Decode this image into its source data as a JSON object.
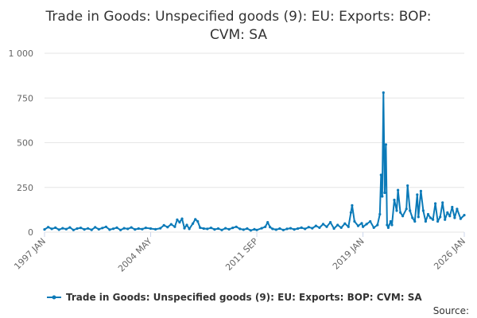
{
  "chart_data": {
    "type": "line",
    "title_line1": "Trade in Goods: Unspecified goods (9): EU: Exports: BOP:",
    "title_line2": "CVM: SA",
    "ylim": [
      0,
      1000
    ],
    "y_ticks": [
      {
        "value": 0,
        "label": "0"
      },
      {
        "value": 250,
        "label": "250"
      },
      {
        "value": 500,
        "label": "500"
      },
      {
        "value": 750,
        "label": "750"
      },
      {
        "value": 1000,
        "label": "1 000"
      }
    ],
    "x_range": [
      "1997-01",
      "2026-01"
    ],
    "x_ticks": [
      {
        "date": "1997-01",
        "label": "1997 JAN"
      },
      {
        "date": "2004-05",
        "label": "2004 MAY"
      },
      {
        "date": "2011-09",
        "label": "2011 SEP"
      },
      {
        "date": "2019-01",
        "label": "2019 JAN"
      },
      {
        "date": "2026-01",
        "label": "2026 JAN"
      }
    ],
    "series": [
      {
        "name": "Trade in Goods: Unspecified goods (9): EU: Exports: BOP: CVM: SA",
        "color": "#0b7ab8",
        "points": [
          [
            "1997-01",
            15
          ],
          [
            "1997-04",
            28
          ],
          [
            "1997-07",
            18
          ],
          [
            "1997-10",
            25
          ],
          [
            "1998-01",
            14
          ],
          [
            "1998-04",
            22
          ],
          [
            "1998-07",
            17
          ],
          [
            "1998-10",
            26
          ],
          [
            "1999-01",
            12
          ],
          [
            "1999-04",
            20
          ],
          [
            "1999-07",
            24
          ],
          [
            "1999-10",
            15
          ],
          [
            "2000-01",
            21
          ],
          [
            "2000-04",
            13
          ],
          [
            "2000-07",
            27
          ],
          [
            "2000-10",
            16
          ],
          [
            "2001-01",
            23
          ],
          [
            "2001-04",
            30
          ],
          [
            "2001-07",
            14
          ],
          [
            "2001-10",
            19
          ],
          [
            "2002-01",
            25
          ],
          [
            "2002-04",
            12
          ],
          [
            "2002-07",
            22
          ],
          [
            "2002-10",
            18
          ],
          [
            "2003-01",
            26
          ],
          [
            "2003-04",
            15
          ],
          [
            "2003-07",
            20
          ],
          [
            "2003-10",
            17
          ],
          [
            "2004-01",
            24
          ],
          [
            "2004-05",
            20
          ],
          [
            "2004-09",
            16
          ],
          [
            "2005-01",
            22
          ],
          [
            "2005-04",
            38
          ],
          [
            "2005-07",
            28
          ],
          [
            "2005-10",
            44
          ],
          [
            "2006-01",
            30
          ],
          [
            "2006-03",
            70
          ],
          [
            "2006-05",
            55
          ],
          [
            "2006-07",
            75
          ],
          [
            "2006-09",
            22
          ],
          [
            "2006-11",
            40
          ],
          [
            "2007-01",
            18
          ],
          [
            "2007-04",
            48
          ],
          [
            "2007-06",
            72
          ],
          [
            "2007-08",
            60
          ],
          [
            "2007-10",
            25
          ],
          [
            "2008-01",
            20
          ],
          [
            "2008-04",
            18
          ],
          [
            "2008-07",
            24
          ],
          [
            "2008-10",
            15
          ],
          [
            "2009-01",
            20
          ],
          [
            "2009-04",
            12
          ],
          [
            "2009-07",
            22
          ],
          [
            "2009-10",
            16
          ],
          [
            "2010-01",
            24
          ],
          [
            "2010-04",
            30
          ],
          [
            "2010-07",
            18
          ],
          [
            "2010-10",
            14
          ],
          [
            "2011-01",
            20
          ],
          [
            "2011-04",
            10
          ],
          [
            "2011-07",
            16
          ],
          [
            "2011-09",
            12
          ],
          [
            "2012-01",
            22
          ],
          [
            "2012-04",
            30
          ],
          [
            "2012-06",
            55
          ],
          [
            "2012-08",
            28
          ],
          [
            "2012-10",
            18
          ],
          [
            "2013-01",
            14
          ],
          [
            "2013-04",
            20
          ],
          [
            "2013-07",
            12
          ],
          [
            "2013-10",
            18
          ],
          [
            "2014-01",
            22
          ],
          [
            "2014-04",
            15
          ],
          [
            "2014-07",
            20
          ],
          [
            "2014-10",
            25
          ],
          [
            "2015-01",
            18
          ],
          [
            "2015-04",
            28
          ],
          [
            "2015-07",
            22
          ],
          [
            "2015-10",
            35
          ],
          [
            "2016-01",
            25
          ],
          [
            "2016-04",
            45
          ],
          [
            "2016-07",
            30
          ],
          [
            "2016-10",
            55
          ],
          [
            "2017-01",
            20
          ],
          [
            "2017-04",
            40
          ],
          [
            "2017-07",
            25
          ],
          [
            "2017-10",
            48
          ],
          [
            "2018-01",
            30
          ],
          [
            "2018-03",
            110
          ],
          [
            "2018-04",
            150
          ],
          [
            "2018-06",
            60
          ],
          [
            "2018-09",
            35
          ],
          [
            "2018-12",
            50
          ],
          [
            "2019-01",
            30
          ],
          [
            "2019-04",
            45
          ],
          [
            "2019-07",
            60
          ],
          [
            "2019-10",
            25
          ],
          [
            "2020-01",
            40
          ],
          [
            "2020-03",
            100
          ],
          [
            "2020-04",
            320
          ],
          [
            "2020-05",
            200
          ],
          [
            "2020-06",
            780
          ],
          [
            "2020-07",
            220
          ],
          [
            "2020-08",
            490
          ],
          [
            "2020-09",
            40
          ],
          [
            "2020-10",
            25
          ],
          [
            "2020-12",
            60
          ],
          [
            "2021-01",
            40
          ],
          [
            "2021-03",
            180
          ],
          [
            "2021-05",
            120
          ],
          [
            "2021-06",
            235
          ],
          [
            "2021-08",
            110
          ],
          [
            "2021-10",
            90
          ],
          [
            "2022-01",
            130
          ],
          [
            "2022-02",
            260
          ],
          [
            "2022-04",
            120
          ],
          [
            "2022-06",
            80
          ],
          [
            "2022-08",
            60
          ],
          [
            "2022-10",
            210
          ],
          [
            "2022-11",
            85
          ],
          [
            "2023-01",
            230
          ],
          [
            "2023-03",
            120
          ],
          [
            "2023-05",
            60
          ],
          [
            "2023-07",
            100
          ],
          [
            "2023-09",
            80
          ],
          [
            "2023-11",
            70
          ],
          [
            "2024-01",
            160
          ],
          [
            "2024-03",
            60
          ],
          [
            "2024-05",
            85
          ],
          [
            "2024-07",
            165
          ],
          [
            "2024-09",
            70
          ],
          [
            "2024-11",
            110
          ],
          [
            "2025-01",
            90
          ],
          [
            "2025-03",
            140
          ],
          [
            "2025-05",
            80
          ],
          [
            "2025-07",
            130
          ],
          [
            "2025-10",
            75
          ],
          [
            "2026-01",
            95
          ]
        ]
      }
    ],
    "legend": "bottom",
    "source_label": "Source:"
  }
}
